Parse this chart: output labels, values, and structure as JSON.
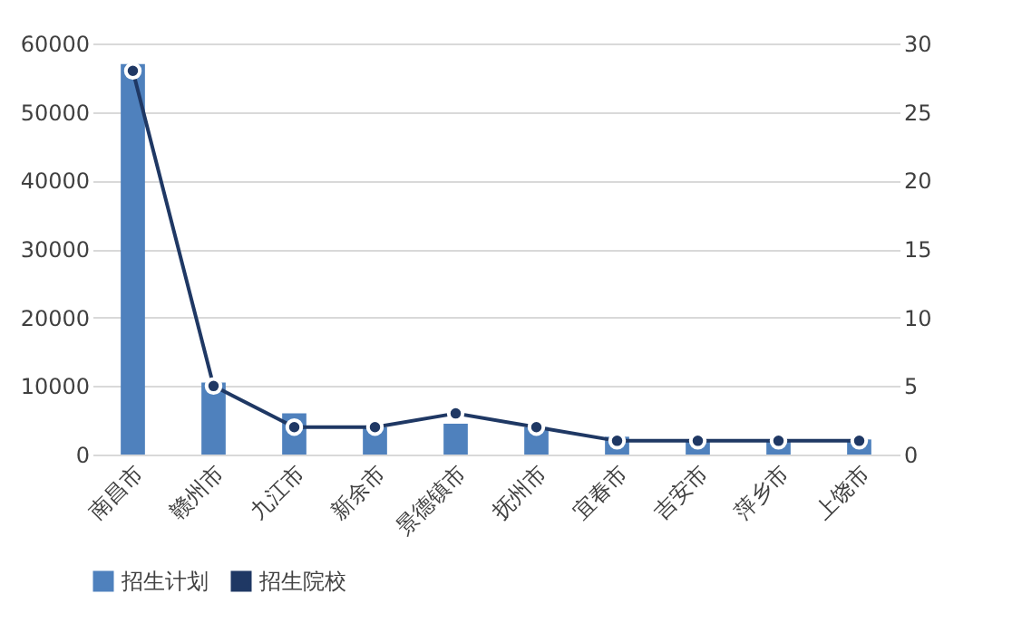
{
  "chart_data": {
    "type": "bar",
    "categories": [
      "南昌市",
      "赣州市",
      "九江市",
      "新余市",
      "景德镇市",
      "抚州市",
      "宜春市",
      "吉安市",
      "萍乡市",
      "上饶市"
    ],
    "series": [
      {
        "name": "招生计划",
        "color": "#4f81bd",
        "values": [
          57000,
          10500,
          6000,
          4000,
          4500,
          4000,
          2600,
          2200,
          2200,
          2200
        ]
      },
      {
        "name": "招生院校",
        "type": "line",
        "axis": "y2",
        "color": "#1f3864",
        "marker": "circle",
        "values": [
          28,
          5,
          2,
          2,
          3,
          2,
          1,
          1,
          1,
          1
        ]
      }
    ],
    "ylim": [
      0,
      60000
    ],
    "yticks": [
      0,
      10000,
      20000,
      30000,
      40000,
      50000,
      60000
    ],
    "y2lim": [
      0,
      30
    ],
    "y2ticks": [
      0,
      5,
      10,
      15,
      20,
      25,
      30
    ],
    "grid": "y",
    "legend": "bottom"
  }
}
